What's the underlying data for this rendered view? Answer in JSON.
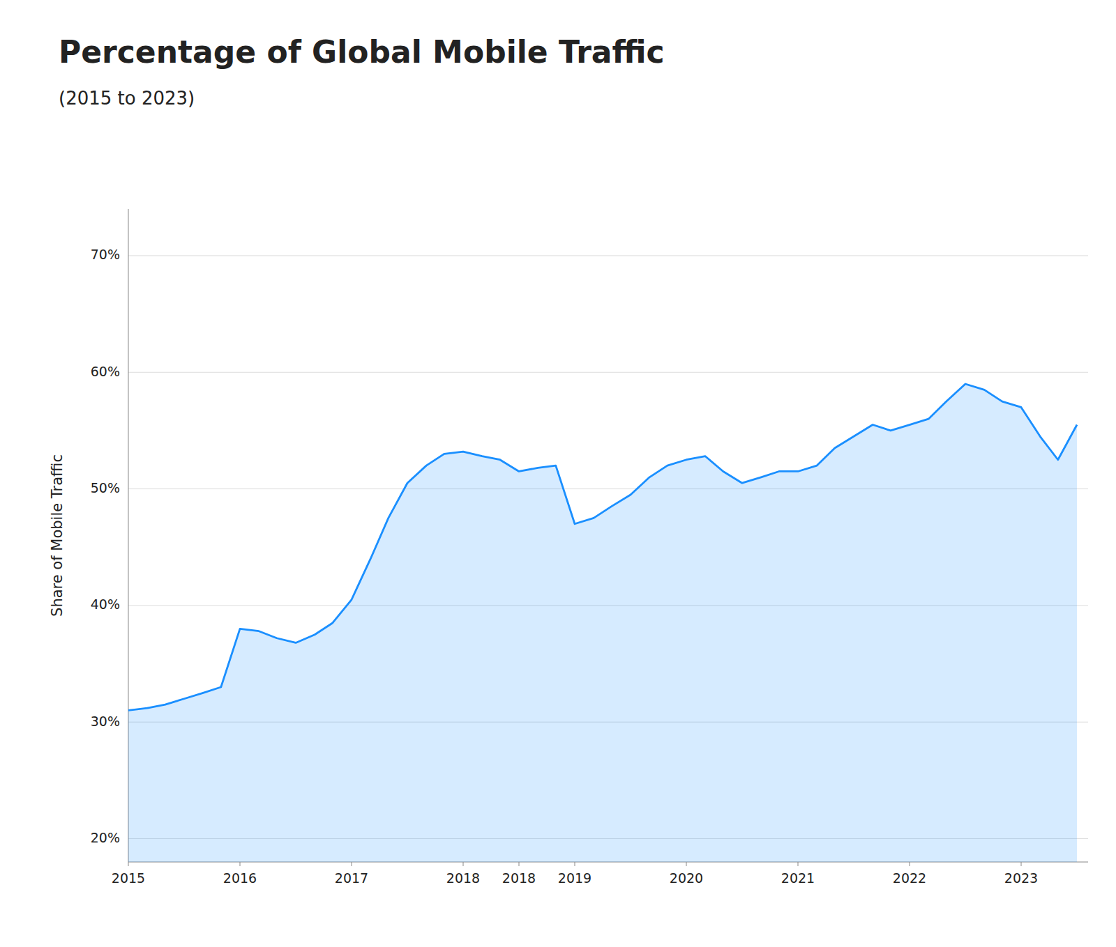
{
  "chart_data": {
    "type": "area",
    "title": "Percentage of Global Mobile Traffic",
    "subtitle": "(2015 to 2023)",
    "y_label": "Share of Mobile Traffic",
    "color": "#1A8FFF",
    "grid": true,
    "x": [
      2015.0,
      2015.17,
      2015.33,
      2015.5,
      2015.67,
      2015.83,
      2016.0,
      2016.17,
      2016.33,
      2016.5,
      2016.67,
      2016.83,
      2017.0,
      2017.17,
      2017.33,
      2017.5,
      2017.67,
      2017.83,
      2018.0,
      2018.17,
      2018.33,
      2018.5,
      2018.67,
      2018.83,
      2019.0,
      2019.17,
      2019.33,
      2019.5,
      2019.67,
      2019.83,
      2020.0,
      2020.17,
      2020.33,
      2020.5,
      2020.67,
      2020.83,
      2021.0,
      2021.17,
      2021.33,
      2021.5,
      2021.67,
      2021.83,
      2022.0,
      2022.17,
      2022.33,
      2022.5,
      2022.67,
      2022.83,
      2023.0,
      2023.17,
      2023.33,
      2023.5
    ],
    "values": [
      31.0,
      31.2,
      31.5,
      32.0,
      32.5,
      33.0,
      38.0,
      37.8,
      37.2,
      36.8,
      37.5,
      38.5,
      40.5,
      44.0,
      47.5,
      50.5,
      52.0,
      53.0,
      53.2,
      52.8,
      52.5,
      51.5,
      51.8,
      52.0,
      47.0,
      47.5,
      48.5,
      49.5,
      51.0,
      52.0,
      52.5,
      52.8,
      51.5,
      50.5,
      51.0,
      51.5,
      51.5,
      52.0,
      53.5,
      54.5,
      55.5,
      55.0,
      55.5,
      56.0,
      57.5,
      59.0,
      58.5,
      57.5,
      57.0,
      54.5,
      52.5,
      55.5
    ],
    "xlim": [
      2015.0,
      2023.6
    ],
    "xticks": [
      2015,
      2016,
      2017,
      2018,
      {
        "value": 2018.5,
        "label": "2018"
      },
      2019,
      2020,
      2021,
      2022,
      2023
    ],
    "ylim": [
      18,
      74
    ],
    "yticks": [
      {
        "value": 20,
        "label": "20%"
      },
      {
        "value": 30,
        "label": "30%"
      },
      {
        "value": 40,
        "label": "40%"
      },
      {
        "value": 50,
        "label": "50%"
      },
      {
        "value": 60,
        "label": "60%"
      },
      {
        "value": 70,
        "label": "70%"
      }
    ]
  }
}
